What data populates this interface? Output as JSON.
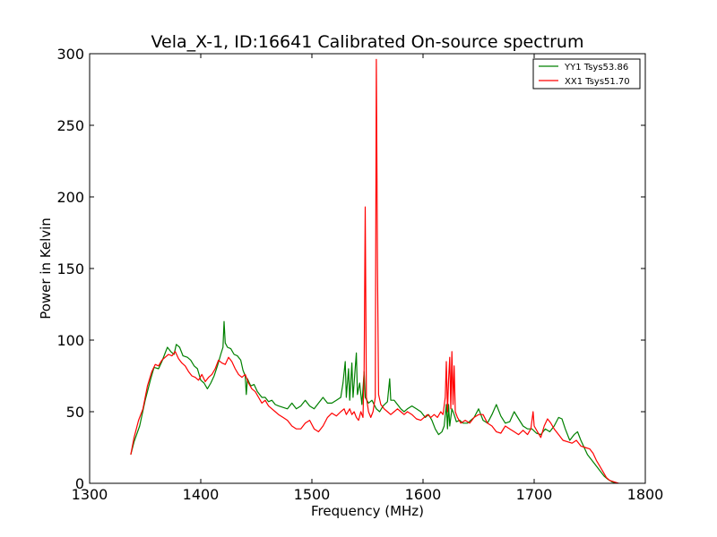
{
  "chart_data": {
    "type": "line",
    "title": "Vela_X-1, ID:16641 Calibrated On-source spectrum",
    "xlabel": "Frequency (MHz)",
    "ylabel": "Power in Kelvin",
    "xlim": [
      1300,
      1800
    ],
    "ylim": [
      0,
      300
    ],
    "xticks": [
      1300,
      1400,
      1500,
      1600,
      1700,
      1800
    ],
    "yticks": [
      0,
      50,
      100,
      150,
      200,
      250,
      300
    ],
    "grid": false,
    "legend_position": "top-right",
    "series": [
      {
        "name": "YY1 Tsys53.86",
        "color": "#008000",
        "points": [
          [
            1337,
            20
          ],
          [
            1340,
            29
          ],
          [
            1345,
            40
          ],
          [
            1350,
            58
          ],
          [
            1355,
            73
          ],
          [
            1358,
            81
          ],
          [
            1362,
            80
          ],
          [
            1365,
            85
          ],
          [
            1368,
            91
          ],
          [
            1370,
            95
          ],
          [
            1373,
            92
          ],
          [
            1376,
            90
          ],
          [
            1378,
            97
          ],
          [
            1381,
            95
          ],
          [
            1384,
            89
          ],
          [
            1388,
            88
          ],
          [
            1391,
            86
          ],
          [
            1394,
            82
          ],
          [
            1397,
            80
          ],
          [
            1400,
            72
          ],
          [
            1403,
            70
          ],
          [
            1406,
            66
          ],
          [
            1409,
            70
          ],
          [
            1412,
            75
          ],
          [
            1415,
            82
          ],
          [
            1418,
            90
          ],
          [
            1420,
            95
          ],
          [
            1421,
            113
          ],
          [
            1422,
            98
          ],
          [
            1424,
            95
          ],
          [
            1427,
            94
          ],
          [
            1430,
            90
          ],
          [
            1433,
            89
          ],
          [
            1436,
            86
          ],
          [
            1438,
            79
          ],
          [
            1440,
            75
          ],
          [
            1441,
            62
          ],
          [
            1442,
            73
          ],
          [
            1445,
            68
          ],
          [
            1448,
            69
          ],
          [
            1451,
            64
          ],
          [
            1455,
            60
          ],
          [
            1458,
            60
          ],
          [
            1461,
            57
          ],
          [
            1464,
            58
          ],
          [
            1467,
            55
          ],
          [
            1470,
            54
          ],
          [
            1474,
            53
          ],
          [
            1478,
            52
          ],
          [
            1482,
            56
          ],
          [
            1486,
            52
          ],
          [
            1490,
            54
          ],
          [
            1494,
            58
          ],
          [
            1498,
            54
          ],
          [
            1502,
            52
          ],
          [
            1506,
            56
          ],
          [
            1510,
            60
          ],
          [
            1514,
            56
          ],
          [
            1518,
            56
          ],
          [
            1522,
            58
          ],
          [
            1526,
            60
          ],
          [
            1528,
            70
          ],
          [
            1530,
            85
          ],
          [
            1531,
            60
          ],
          [
            1533,
            80
          ],
          [
            1534,
            58
          ],
          [
            1536,
            84
          ],
          [
            1537,
            60
          ],
          [
            1540,
            91
          ],
          [
            1541,
            62
          ],
          [
            1543,
            70
          ],
          [
            1545,
            55
          ],
          [
            1547,
            78
          ],
          [
            1548,
            60
          ],
          [
            1551,
            56
          ],
          [
            1554,
            58
          ],
          [
            1556,
            55
          ],
          [
            1558,
            52
          ],
          [
            1561,
            50
          ],
          [
            1564,
            54
          ],
          [
            1568,
            57
          ],
          [
            1570,
            73
          ],
          [
            1571,
            58
          ],
          [
            1574,
            58
          ],
          [
            1577,
            55
          ],
          [
            1580,
            52
          ],
          [
            1583,
            50
          ],
          [
            1586,
            52
          ],
          [
            1590,
            54
          ],
          [
            1594,
            52
          ],
          [
            1598,
            50
          ],
          [
            1602,
            46
          ],
          [
            1605,
            48
          ],
          [
            1608,
            44
          ],
          [
            1611,
            38
          ],
          [
            1614,
            34
          ],
          [
            1617,
            36
          ],
          [
            1619,
            40
          ],
          [
            1621,
            55
          ],
          [
            1622,
            38
          ],
          [
            1623,
            55
          ],
          [
            1624,
            40
          ],
          [
            1626,
            52
          ],
          [
            1628,
            48
          ],
          [
            1630,
            43
          ],
          [
            1633,
            44
          ],
          [
            1636,
            42
          ],
          [
            1640,
            42
          ],
          [
            1643,
            44
          ],
          [
            1646,
            46
          ],
          [
            1650,
            52
          ],
          [
            1654,
            44
          ],
          [
            1658,
            42
          ],
          [
            1662,
            48
          ],
          [
            1666,
            55
          ],
          [
            1670,
            47
          ],
          [
            1674,
            42
          ],
          [
            1678,
            43
          ],
          [
            1682,
            50
          ],
          [
            1686,
            45
          ],
          [
            1690,
            40
          ],
          [
            1694,
            38
          ],
          [
            1698,
            38
          ],
          [
            1702,
            35
          ],
          [
            1706,
            34
          ],
          [
            1710,
            38
          ],
          [
            1714,
            36
          ],
          [
            1718,
            40
          ],
          [
            1722,
            46
          ],
          [
            1725,
            45
          ],
          [
            1728,
            38
          ],
          [
            1732,
            30
          ],
          [
            1736,
            34
          ],
          [
            1739,
            36
          ],
          [
            1742,
            30
          ],
          [
            1745,
            25
          ],
          [
            1748,
            20
          ],
          [
            1752,
            16
          ],
          [
            1756,
            12
          ],
          [
            1760,
            8
          ],
          [
            1763,
            5
          ],
          [
            1766,
            3
          ],
          [
            1770,
            1
          ],
          [
            1775,
            0
          ]
        ]
      },
      {
        "name": "XX1 Tsys51.70",
        "color": "#ff0000",
        "points": [
          [
            1337,
            20
          ],
          [
            1340,
            32
          ],
          [
            1344,
            44
          ],
          [
            1348,
            52
          ],
          [
            1352,
            68
          ],
          [
            1356,
            78
          ],
          [
            1359,
            83
          ],
          [
            1362,
            82
          ],
          [
            1365,
            86
          ],
          [
            1368,
            88
          ],
          [
            1371,
            90
          ],
          [
            1374,
            89
          ],
          [
            1377,
            92
          ],
          [
            1380,
            87
          ],
          [
            1383,
            84
          ],
          [
            1386,
            82
          ],
          [
            1389,
            78
          ],
          [
            1392,
            75
          ],
          [
            1395,
            74
          ],
          [
            1398,
            72
          ],
          [
            1401,
            76
          ],
          [
            1404,
            71
          ],
          [
            1407,
            74
          ],
          [
            1410,
            76
          ],
          [
            1413,
            80
          ],
          [
            1416,
            86
          ],
          [
            1419,
            84
          ],
          [
            1422,
            83
          ],
          [
            1425,
            88
          ],
          [
            1428,
            85
          ],
          [
            1431,
            80
          ],
          [
            1434,
            76
          ],
          [
            1437,
            74
          ],
          [
            1440,
            76
          ],
          [
            1443,
            70
          ],
          [
            1446,
            66
          ],
          [
            1449,
            64
          ],
          [
            1452,
            60
          ],
          [
            1455,
            56
          ],
          [
            1458,
            58
          ],
          [
            1461,
            54
          ],
          [
            1464,
            52
          ],
          [
            1467,
            50
          ],
          [
            1470,
            48
          ],
          [
            1474,
            46
          ],
          [
            1478,
            44
          ],
          [
            1482,
            40
          ],
          [
            1486,
            38
          ],
          [
            1490,
            38
          ],
          [
            1494,
            42
          ],
          [
            1498,
            44
          ],
          [
            1502,
            38
          ],
          [
            1506,
            36
          ],
          [
            1510,
            40
          ],
          [
            1514,
            46
          ],
          [
            1518,
            49
          ],
          [
            1522,
            47
          ],
          [
            1526,
            50
          ],
          [
            1529,
            52
          ],
          [
            1531,
            48
          ],
          [
            1534,
            52
          ],
          [
            1536,
            48
          ],
          [
            1538,
            50
          ],
          [
            1540,
            46
          ],
          [
            1542,
            44
          ],
          [
            1544,
            50
          ],
          [
            1546,
            46
          ],
          [
            1547,
            80
          ],
          [
            1548,
            193
          ],
          [
            1549,
            60
          ],
          [
            1551,
            50
          ],
          [
            1553,
            46
          ],
          [
            1555,
            50
          ],
          [
            1557,
            60
          ],
          [
            1558,
            296
          ],
          [
            1559,
            150
          ],
          [
            1560,
            62
          ],
          [
            1562,
            55
          ],
          [
            1565,
            52
          ],
          [
            1568,
            50
          ],
          [
            1571,
            48
          ],
          [
            1574,
            50
          ],
          [
            1577,
            52
          ],
          [
            1580,
            50
          ],
          [
            1583,
            48
          ],
          [
            1586,
            50
          ],
          [
            1590,
            48
          ],
          [
            1594,
            45
          ],
          [
            1598,
            44
          ],
          [
            1601,
            46
          ],
          [
            1604,
            48
          ],
          [
            1607,
            46
          ],
          [
            1610,
            48
          ],
          [
            1613,
            46
          ],
          [
            1616,
            50
          ],
          [
            1618,
            48
          ],
          [
            1620,
            60
          ],
          [
            1621,
            85
          ],
          [
            1622,
            50
          ],
          [
            1623,
            72
          ],
          [
            1624,
            88
          ],
          [
            1625,
            52
          ],
          [
            1626,
            92
          ],
          [
            1627,
            55
          ],
          [
            1628,
            82
          ],
          [
            1629,
            50
          ],
          [
            1631,
            46
          ],
          [
            1634,
            42
          ],
          [
            1638,
            44
          ],
          [
            1642,
            42
          ],
          [
            1646,
            46
          ],
          [
            1650,
            48
          ],
          [
            1654,
            48
          ],
          [
            1658,
            42
          ],
          [
            1662,
            40
          ],
          [
            1666,
            36
          ],
          [
            1670,
            35
          ],
          [
            1674,
            40
          ],
          [
            1678,
            38
          ],
          [
            1682,
            36
          ],
          [
            1686,
            34
          ],
          [
            1690,
            37
          ],
          [
            1694,
            34
          ],
          [
            1697,
            38
          ],
          [
            1699,
            50
          ],
          [
            1700,
            40
          ],
          [
            1703,
            36
          ],
          [
            1706,
            32
          ],
          [
            1709,
            40
          ],
          [
            1712,
            45
          ],
          [
            1715,
            42
          ],
          [
            1718,
            38
          ],
          [
            1722,
            34
          ],
          [
            1726,
            30
          ],
          [
            1730,
            29
          ],
          [
            1734,
            28
          ],
          [
            1738,
            30
          ],
          [
            1742,
            26
          ],
          [
            1746,
            25
          ],
          [
            1750,
            24
          ],
          [
            1753,
            21
          ],
          [
            1756,
            16
          ],
          [
            1759,
            12
          ],
          [
            1762,
            8
          ],
          [
            1765,
            4
          ],
          [
            1768,
            2
          ],
          [
            1772,
            1
          ],
          [
            1776,
            0
          ]
        ]
      }
    ]
  }
}
